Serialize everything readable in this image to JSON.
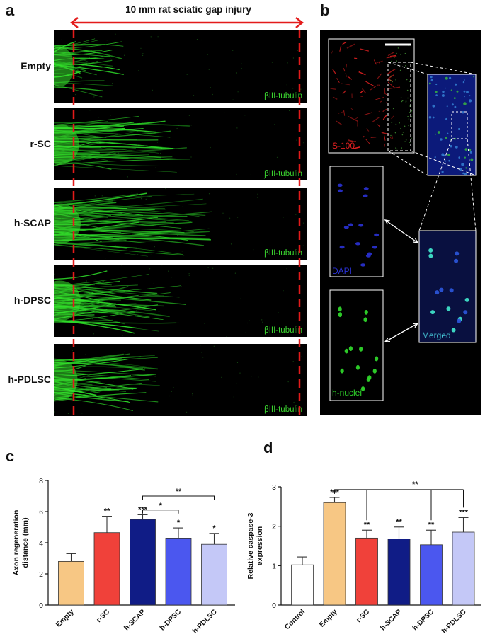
{
  "panel_a": {
    "letter": "a",
    "gap_label": "10 mm rat sciatic gap injury",
    "stain_label": "βIII-tubulin",
    "rows": [
      {
        "label": "Empty",
        "reach": 0.27,
        "density": 0.55
      },
      {
        "label": "r-SC",
        "reach": 0.52,
        "density": 0.9
      },
      {
        "label": "h-SCAP",
        "reach": 0.6,
        "density": 1.0
      },
      {
        "label": "h-DPSC",
        "reach": 0.5,
        "density": 1.0
      },
      {
        "label": "h-PDLSC",
        "reach": 0.4,
        "density": 0.8
      }
    ]
  },
  "panel_b": {
    "letter": "b",
    "labels": {
      "s100": "S-100",
      "dapi": "DAPI",
      "hnuclei": "h-nuclei",
      "merged": "Merged"
    },
    "colors": {
      "s100": "#e02020",
      "dapi": "#2a32d6",
      "hnuclei": "#2ed42a",
      "merged": "#46c8d8"
    }
  },
  "panel_c": {
    "letter": "c",
    "chart_data": {
      "type": "bar",
      "categories": [
        "Empty",
        "r-SC",
        "h-SCAP",
        "h-DPSC",
        "h-PDLSC"
      ],
      "values": [
        2.8,
        4.65,
        5.5,
        4.3,
        3.9
      ],
      "errors": [
        0.5,
        1.05,
        0.3,
        0.65,
        0.7
      ],
      "colors": [
        "#f7c784",
        "#f0413a",
        "#101c86",
        "#4b57ef",
        "#c4c8f7"
      ],
      "significance": [
        "",
        "**",
        "***",
        "*",
        "*"
      ],
      "brackets": [
        {
          "from": 2,
          "to": 3,
          "label": "*"
        },
        {
          "from": 2,
          "to": 4,
          "label": "**"
        }
      ],
      "ylabel": "Axon regeneration distance (mm)",
      "ylabel_lines": [
        "Axon regeneration",
        "distance (mm)"
      ],
      "ylim": [
        0,
        8
      ],
      "yticks": [
        "0",
        "2",
        "4",
        "6",
        "8"
      ]
    }
  },
  "panel_d": {
    "letter": "d",
    "chart_data": {
      "type": "bar",
      "categories": [
        "Control",
        "Empty",
        "r-SC",
        "h-SCAP",
        "h-DPSC",
        "h-PDLSC"
      ],
      "values": [
        1.02,
        2.6,
        1.7,
        1.68,
        1.53,
        1.85
      ],
      "errors": [
        0.2,
        0.13,
        0.2,
        0.3,
        0.37,
        0.37
      ],
      "colors": [
        "#ffffff",
        "#f7c784",
        "#f0413a",
        "#101c86",
        "#4b57ef",
        "#c4c8f7"
      ],
      "significance": [
        "",
        "***",
        "**",
        "**",
        "**",
        "***"
      ],
      "bracket_label": "**",
      "ylabel": "Relative caspase-3 expression",
      "ylabel_lines": [
        "Relative caspase-3",
        "expression"
      ],
      "ylim": [
        0,
        3
      ],
      "yticks": [
        "0",
        "1",
        "2",
        "3"
      ]
    }
  }
}
